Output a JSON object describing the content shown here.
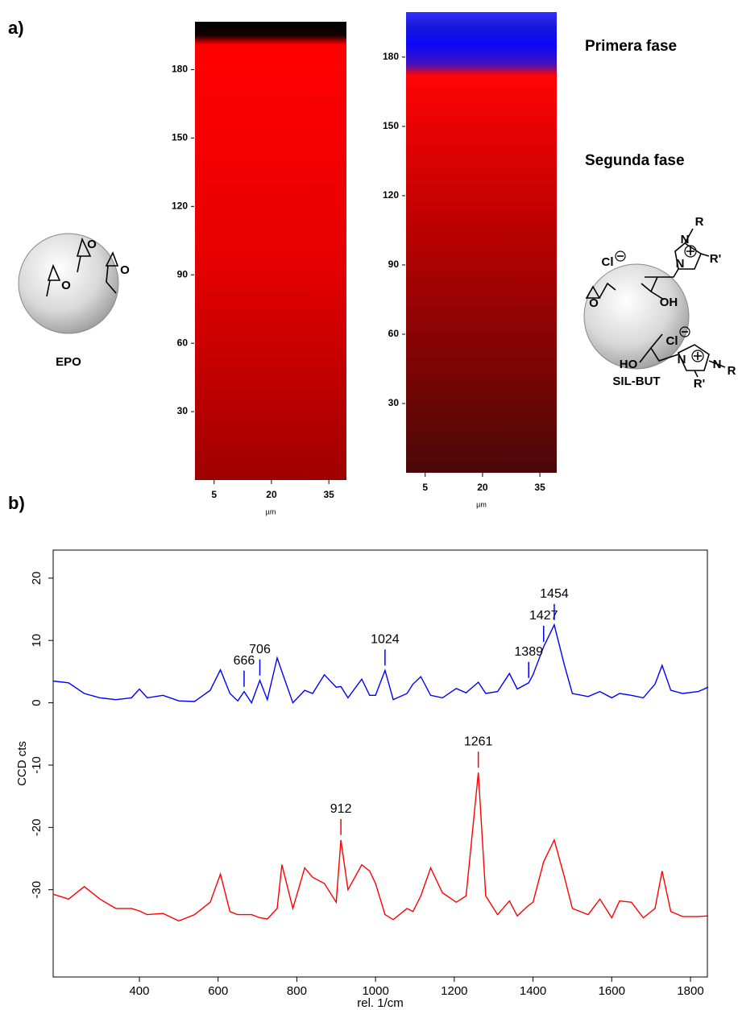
{
  "panel_labels": [
    "a)",
    "b)"
  ],
  "molecules": {
    "epo": {
      "name": "EPO",
      "atoms": [
        "O",
        "O",
        "O"
      ]
    },
    "sil_but": {
      "name": "SIL-BUT",
      "atoms": [
        "R",
        "N",
        "R'",
        "Cl",
        "N",
        "OH",
        "Cl",
        "HO",
        "N",
        "N",
        "R",
        "R'",
        "O"
      ]
    }
  },
  "chart_data": [
    {
      "type": "image",
      "ylim": [
        0,
        201
      ],
      "yticks": [
        30,
        60,
        90,
        120,
        150,
        180
      ],
      "xlim": [
        0,
        39.6
      ],
      "xticks": [
        5,
        20,
        35
      ],
      "xlabel": "µm",
      "profile": [
        {
          "y": 201,
          "color": "#000000"
        },
        {
          "y": 195,
          "color": "#120000"
        },
        {
          "y": 191,
          "color": "#ff0000"
        },
        {
          "y": 100,
          "color": "#e80000"
        },
        {
          "y": 0,
          "color": "#a00000"
        }
      ]
    },
    {
      "type": "image",
      "ylim": [
        0,
        199.5
      ],
      "yticks": [
        30,
        60,
        90,
        120,
        150,
        180
      ],
      "xlim": [
        0,
        39.4
      ],
      "xticks": [
        5,
        20,
        35
      ],
      "xlabel": "µm",
      "profile": [
        {
          "y": 199.5,
          "color": "#3030ff"
        },
        {
          "y": 193,
          "color": "#1818d8"
        },
        {
          "y": 186,
          "color": "#0808f8"
        },
        {
          "y": 177,
          "color": "#4010c0"
        },
        {
          "y": 172,
          "color": "#ff0404"
        },
        {
          "y": 110,
          "color": "#c00000"
        },
        {
          "y": 0,
          "color": "#4a0808"
        }
      ],
      "annotations": [
        {
          "text": "Primera fase",
          "color": "#0000ff"
        },
        {
          "text": "Segunda fase",
          "color": "#ff0000"
        }
      ]
    },
    {
      "type": "line",
      "xlabel": "rel. 1/cm",
      "ylabel": "CCD cts",
      "xlim": [
        181,
        1843
      ],
      "ylim": [
        -44,
        24.5
      ],
      "xticks": [
        400,
        600,
        800,
        1000,
        1200,
        1400,
        1600,
        1800
      ],
      "yticks": [
        -30,
        -20,
        -10,
        0,
        10,
        20
      ],
      "x": [
        180,
        220,
        260,
        300,
        340,
        380,
        400,
        420,
        460,
        500,
        540,
        580,
        606,
        630,
        650,
        666,
        685,
        706,
        725,
        750,
        762,
        790,
        820,
        840,
        870,
        900,
        912,
        930,
        965,
        985,
        1000,
        1024,
        1045,
        1080,
        1095,
        1115,
        1140,
        1170,
        1205,
        1230,
        1261,
        1280,
        1310,
        1340,
        1360,
        1389,
        1400,
        1427,
        1454,
        1480,
        1500,
        1540,
        1570,
        1600,
        1620,
        1650,
        1680,
        1710,
        1728,
        1750,
        1780,
        1820,
        1845
      ],
      "series": [
        {
          "color": "#0000ff",
          "values": [
            3.5,
            3.2,
            1.5,
            0.8,
            0.5,
            0.8,
            2.2,
            0.8,
            1.2,
            0.3,
            0.2,
            2,
            5.3,
            1.5,
            0.3,
            1.8,
            0,
            3.6,
            0.5,
            7.2,
            5,
            0,
            2,
            1.5,
            4.5,
            2.5,
            2.6,
            0.8,
            3.8,
            1.2,
            1.2,
            5.2,
            0.5,
            1.5,
            3,
            4.2,
            1.2,
            0.8,
            2.3,
            1.6,
            3.3,
            1.5,
            1.8,
            4.7,
            2.2,
            3.2,
            4.5,
            9,
            12.5,
            6,
            1.5,
            1,
            1.8,
            0.8,
            1.5,
            1.2,
            0.8,
            3,
            6,
            2,
            1.5,
            1.8,
            2.5
          ]
        },
        {
          "color": "#ff0000",
          "values": [
            -30.7,
            -31.5,
            -29.5,
            -31.5,
            -33,
            -33,
            -33.4,
            -34,
            -33.8,
            -35,
            -34,
            -32,
            -27.5,
            -33.5,
            -34,
            -34,
            -34,
            -34.5,
            -34.7,
            -33,
            -26,
            -33,
            -26.5,
            -28,
            -29,
            -32,
            -22,
            -30,
            -26,
            -27,
            -29,
            -34,
            -34.8,
            -33,
            -33.5,
            -31,
            -26.5,
            -30.5,
            -32,
            -31,
            -11.2,
            -31,
            -34,
            -31.8,
            -34.2,
            -32.5,
            -32,
            -25.5,
            -22,
            -28,
            -33,
            -34,
            -31.5,
            -34.5,
            -31.8,
            -32,
            -34.5,
            -33,
            -27,
            -33.5,
            -34.3,
            -34.3,
            -34.2
          ]
        }
      ],
      "annotations": [
        {
          "series": 0,
          "x": 666
        },
        {
          "series": 0,
          "x": 706
        },
        {
          "series": 0,
          "x": 1024
        },
        {
          "series": 0,
          "x": 1389
        },
        {
          "series": 0,
          "x": 1427
        },
        {
          "series": 0,
          "x": 1454
        },
        {
          "series": 1,
          "x": 912
        },
        {
          "series": 1,
          "x": 1261
        }
      ]
    }
  ]
}
